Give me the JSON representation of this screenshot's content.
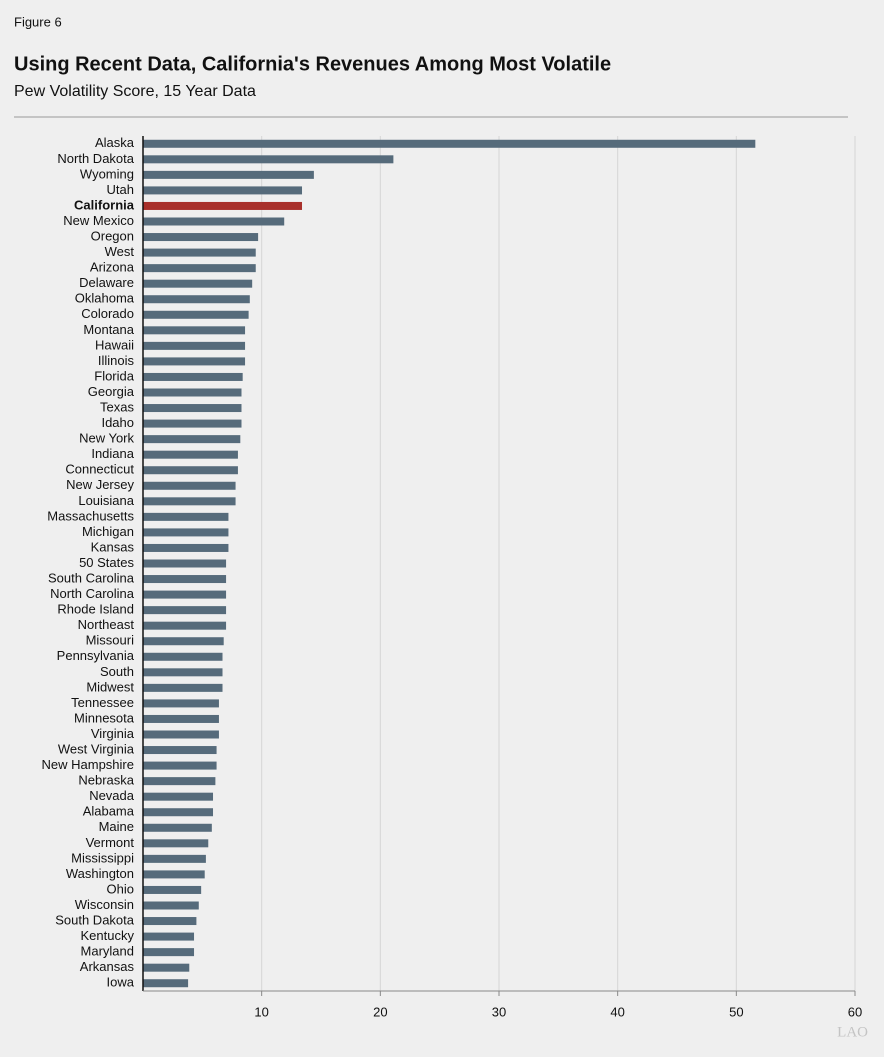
{
  "figure_label": "Figure 6",
  "logo": "LAO",
  "chart_data": {
    "type": "hbar",
    "title": "Using Recent Data, California's Revenues Among Most Volatile",
    "subtitle": "Pew Volatility Score, 15 Year Data",
    "categories": [
      "Alaska",
      "North Dakota",
      "Wyoming",
      "Utah",
      "California",
      "New Mexico",
      "Oregon",
      "West",
      "Arizona",
      "Delaware",
      "Oklahoma",
      "Colorado",
      "Montana",
      "Hawaii",
      "Illinois",
      "Florida",
      "Georgia",
      "Texas",
      "Idaho",
      "New York",
      "Indiana",
      "Connecticut",
      "New Jersey",
      "Louisiana",
      "Massachusetts",
      "Michigan",
      "Kansas",
      "50 States",
      "South Carolina",
      "North Carolina",
      "Rhode Island",
      "Northeast",
      "Missouri",
      "Pennsylvania",
      "South",
      "Midwest",
      "Tennessee",
      "Minnesota",
      "Virginia",
      "West Virginia",
      "New Hampshire",
      "Nebraska",
      "Nevada",
      "Alabama",
      "Maine",
      "Vermont",
      "Mississippi",
      "Washington",
      "Ohio",
      "Wisconsin",
      "South Dakota",
      "Kentucky",
      "Maryland",
      "Arkansas",
      "Iowa"
    ],
    "values": [
      51.6,
      21.1,
      14.4,
      13.4,
      13.4,
      11.9,
      9.7,
      9.5,
      9.5,
      9.2,
      9.0,
      8.9,
      8.6,
      8.6,
      8.6,
      8.4,
      8.3,
      8.3,
      8.3,
      8.2,
      8.0,
      8.0,
      7.8,
      7.8,
      7.2,
      7.2,
      7.2,
      7.0,
      7.0,
      7.0,
      7.0,
      7.0,
      6.8,
      6.7,
      6.7,
      6.7,
      6.4,
      6.4,
      6.4,
      6.2,
      6.2,
      6.1,
      5.9,
      5.9,
      5.8,
      5.5,
      5.3,
      5.2,
      4.9,
      4.7,
      4.5,
      4.3,
      4.3,
      3.9,
      3.8
    ],
    "color": "#566b7b",
    "bar_colors": [
      "#566b7b",
      "#566b7b",
      "#566b7b",
      "#566b7b",
      "#a8302b",
      "#566b7b",
      "#566b7b",
      "#566b7b",
      "#566b7b",
      "#566b7b",
      "#566b7b",
      "#566b7b",
      "#566b7b",
      "#566b7b",
      "#566b7b",
      "#566b7b",
      "#566b7b",
      "#566b7b",
      "#566b7b",
      "#566b7b",
      "#566b7b",
      "#566b7b",
      "#566b7b",
      "#566b7b",
      "#566b7b",
      "#566b7b",
      "#566b7b",
      "#566b7b",
      "#566b7b",
      "#566b7b",
      "#566b7b",
      "#566b7b",
      "#566b7b",
      "#566b7b",
      "#566b7b",
      "#566b7b",
      "#566b7b",
      "#566b7b",
      "#566b7b",
      "#566b7b",
      "#566b7b",
      "#566b7b",
      "#566b7b",
      "#566b7b",
      "#566b7b",
      "#566b7b",
      "#566b7b",
      "#566b7b",
      "#566b7b",
      "#566b7b",
      "#566b7b",
      "#566b7b",
      "#566b7b",
      "#566b7b",
      "#566b7b"
    ],
    "xlim": [
      0,
      60
    ],
    "xticks": [
      10,
      20,
      30,
      40,
      50,
      60
    ],
    "grid": true
  }
}
